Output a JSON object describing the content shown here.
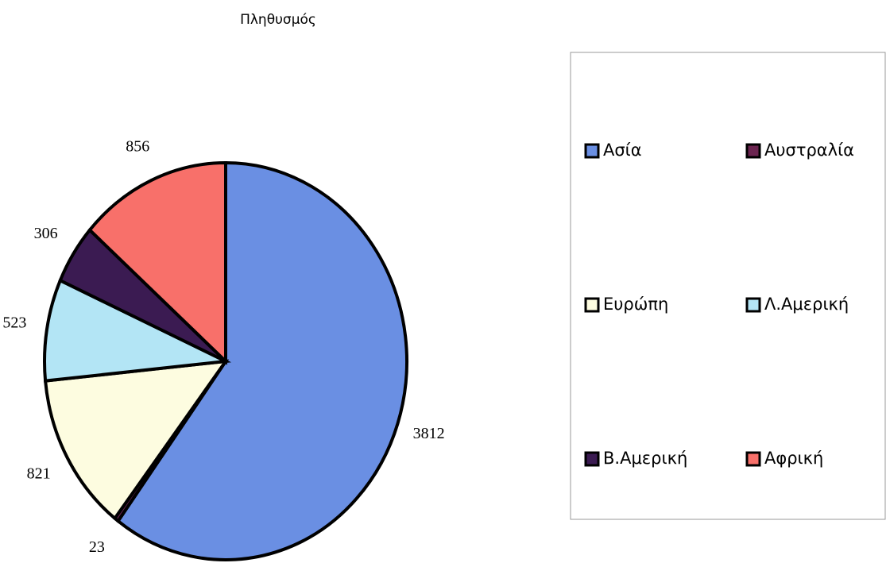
{
  "chart_data": {
    "type": "pie",
    "title": "Πληθυσμός",
    "categories": [
      "Ασία",
      "Αυστραλία",
      "Ευρώπη",
      "Λ.Αμερική",
      "Β.Αμερική",
      "Αφρική"
    ],
    "values": [
      3812,
      23,
      821,
      523,
      306,
      856
    ],
    "colors": [
      "#6a8fe3",
      "#6b2450",
      "#fdfce0",
      "#b3e5f5",
      "#3b1b52",
      "#f8706a"
    ],
    "legend": "right"
  }
}
